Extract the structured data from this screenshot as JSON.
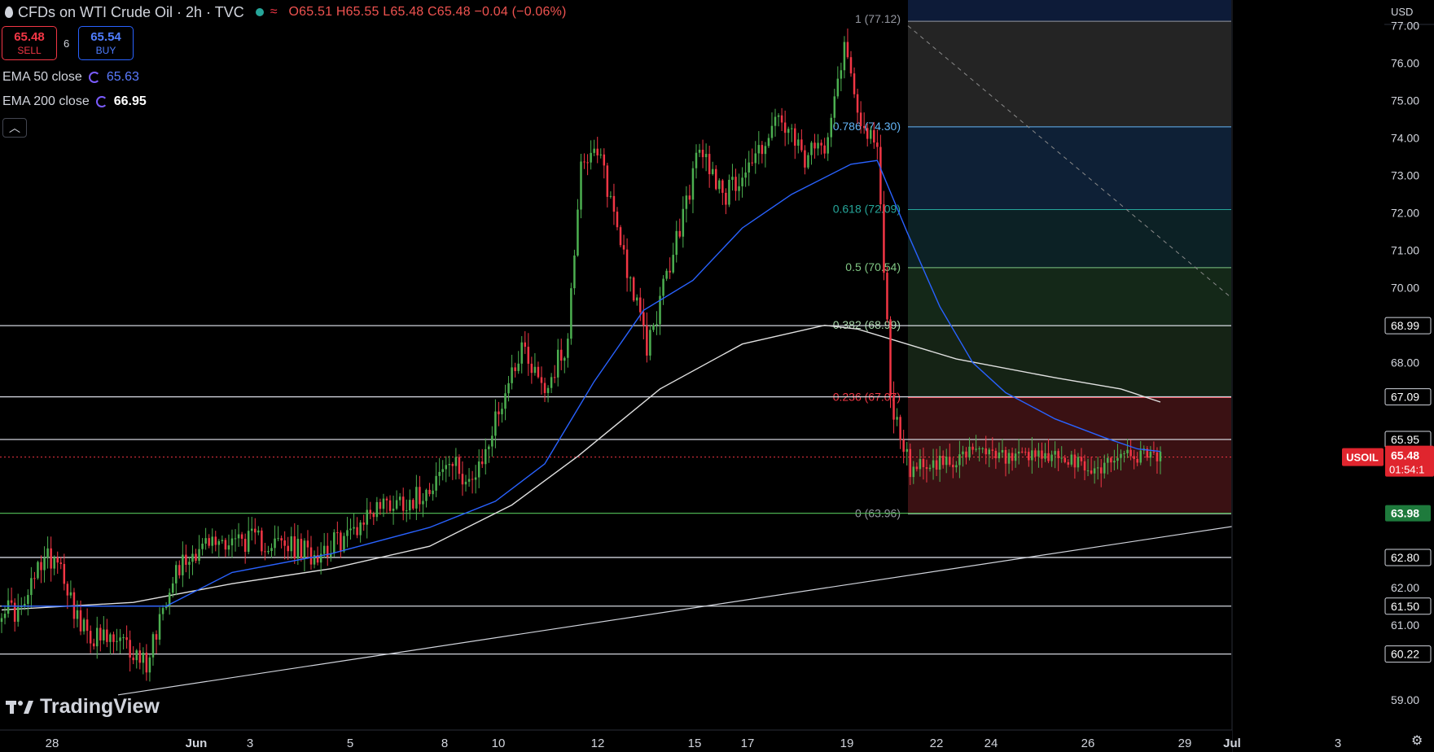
{
  "header": {
    "title": "CFDs on WTI Crude Oil · 2h · TVC",
    "ohlc": "O65.51 H65.55 L65.48 C65.48 −0.04 (−0.06%)"
  },
  "trade": {
    "sell_price": "65.48",
    "sell_label": "SELL",
    "spread": "6",
    "buy_price": "65.54",
    "buy_label": "BUY"
  },
  "indicators": [
    {
      "label": "EMA 50 close",
      "value": "65.63"
    },
    {
      "label": "EMA 200 close",
      "value": "66.95"
    }
  ],
  "currency": "USD",
  "logo_text": "TradingView",
  "chart_data": {
    "type": "candlestick",
    "symbol_tag": "USOIL",
    "last_price": "65.48",
    "countdown": "01:54:1",
    "colors": {
      "up": "#4caf50",
      "down": "#f23645",
      "ema50": "#2962ff",
      "ema200": "#e0e0e0",
      "grid_line": "#d1d4dc"
    },
    "y_axis": {
      "min": 58.3,
      "max": 77.6,
      "ticks": [
        "77.00",
        "76.00",
        "75.00",
        "74.00",
        "73.00",
        "72.00",
        "71.00",
        "70.00",
        "68.00",
        "62.00",
        "61.00",
        "59.00"
      ]
    },
    "x_labels": [
      "28",
      "Jun",
      "3",
      "5",
      "8",
      "10",
      "12",
      "15",
      "17",
      "19",
      "22",
      "24",
      "26",
      "29",
      "Jul",
      "3"
    ],
    "horizontal_levels": [
      {
        "value": 68.99,
        "label": "68.99",
        "style": "white"
      },
      {
        "value": 67.09,
        "label": "67.09",
        "style": "white"
      },
      {
        "value": 65.95,
        "label": "65.95",
        "style": "white"
      },
      {
        "value": 63.98,
        "label": "63.98",
        "style": "green"
      },
      {
        "value": 62.8,
        "label": "62.80",
        "style": "white"
      },
      {
        "value": 61.5,
        "label": "61.50",
        "style": "white"
      },
      {
        "value": 60.22,
        "label": "60.22",
        "style": "white"
      }
    ],
    "fibonacci": [
      {
        "value": 77.12,
        "label": "1 (77.12)",
        "color": "#9598a1",
        "fill": "#242424"
      },
      {
        "value": 74.3,
        "label": "0.786 (74.30)",
        "color": "#64b5f6",
        "fill": "#0e2036"
      },
      {
        "value": 72.09,
        "label": "0.618 (72.09)",
        "color": "#26a69a",
        "fill": "#0c2125"
      },
      {
        "value": 70.54,
        "label": "0.5 (70.54)",
        "color": "#81c784",
        "fill": "#142818"
      },
      {
        "value": 68.99,
        "label": "0.382 (68.99)",
        "color": "#a5d6a7",
        "fill": "#152315"
      },
      {
        "value": 67.07,
        "label": "0.236 (67.07)",
        "color": "#f23645",
        "fill": "#3a1113"
      },
      {
        "value": 63.96,
        "label": "0 (63.96)",
        "color": "#9598a1",
        "fill": "#3a1113"
      }
    ],
    "fib_extra": {
      "top_fill": "#0d1b38"
    },
    "trendline": {
      "from": [
        0,
        60.0
      ],
      "to": [
        1.0,
        64.85
      ]
    },
    "diagonal": {
      "from": [
        0.0,
        77.1
      ],
      "to": [
        1.0,
        66.3
      ]
    },
    "anchors": [
      {
        "i": 0,
        "v": 61.5
      },
      {
        "i": 6,
        "v": 61.3
      },
      {
        "i": 12,
        "v": 62.7
      },
      {
        "i": 17,
        "v": 62.9
      },
      {
        "i": 24,
        "v": 60.9
      },
      {
        "i": 30,
        "v": 60.6
      },
      {
        "i": 36,
        "v": 60.5
      },
      {
        "i": 44,
        "v": 60.0
      },
      {
        "i": 52,
        "v": 62.4
      },
      {
        "i": 60,
        "v": 63.1
      },
      {
        "i": 70,
        "v": 63.3
      },
      {
        "i": 82,
        "v": 63.2
      },
      {
        "i": 94,
        "v": 62.9
      },
      {
        "i": 104,
        "v": 63.3
      },
      {
        "i": 114,
        "v": 64.2
      },
      {
        "i": 126,
        "v": 64.4
      },
      {
        "i": 136,
        "v": 65.3
      },
      {
        "i": 144,
        "v": 64.8
      },
      {
        "i": 152,
        "v": 67.0
      },
      {
        "i": 158,
        "v": 68.5
      },
      {
        "i": 165,
        "v": 67.3
      },
      {
        "i": 172,
        "v": 68.6
      },
      {
        "i": 176,
        "v": 73.5
      },
      {
        "i": 182,
        "v": 73.4
      },
      {
        "i": 188,
        "v": 71.3
      },
      {
        "i": 196,
        "v": 68.4
      },
      {
        "i": 204,
        "v": 70.9
      },
      {
        "i": 212,
        "v": 73.7
      },
      {
        "i": 220,
        "v": 72.5
      },
      {
        "i": 228,
        "v": 73.4
      },
      {
        "i": 236,
        "v": 74.5
      },
      {
        "i": 244,
        "v": 73.4
      },
      {
        "i": 250,
        "v": 73.9
      },
      {
        "i": 256,
        "v": 76.5
      },
      {
        "i": 262,
        "v": 74.2
      },
      {
        "i": 266,
        "v": 73.6
      },
      {
        "i": 270,
        "v": 67.5
      },
      {
        "i": 274,
        "v": 65.3
      },
      {
        "i": 284,
        "v": 65.3
      },
      {
        "i": 296,
        "v": 65.6
      },
      {
        "i": 308,
        "v": 65.4
      },
      {
        "i": 320,
        "v": 65.5
      },
      {
        "i": 332,
        "v": 65.1
      },
      {
        "i": 340,
        "v": 65.6
      },
      {
        "i": 348,
        "v": 65.48
      }
    ],
    "ema50": [
      [
        0,
        61.5
      ],
      [
        20,
        61.5
      ],
      [
        50,
        61.5
      ],
      [
        70,
        62.4
      ],
      [
        100,
        62.9
      ],
      [
        130,
        63.6
      ],
      [
        150,
        64.3
      ],
      [
        165,
        65.3
      ],
      [
        180,
        67.5
      ],
      [
        195,
        69.4
      ],
      [
        210,
        70.2
      ],
      [
        225,
        71.6
      ],
      [
        240,
        72.5
      ],
      [
        258,
        73.3
      ],
      [
        266,
        73.4
      ],
      [
        275,
        71.5
      ],
      [
        285,
        69.5
      ],
      [
        295,
        68.0
      ],
      [
        305,
        67.2
      ],
      [
        320,
        66.5
      ],
      [
        335,
        66.0
      ],
      [
        345,
        65.7
      ],
      [
        352,
        65.63
      ]
    ],
    "ema200": [
      [
        0,
        61.4
      ],
      [
        40,
        61.6
      ],
      [
        70,
        62.1
      ],
      [
        100,
        62.5
      ],
      [
        130,
        63.1
      ],
      [
        155,
        64.2
      ],
      [
        175,
        65.5
      ],
      [
        200,
        67.3
      ],
      [
        225,
        68.5
      ],
      [
        250,
        69.0
      ],
      [
        260,
        68.9
      ],
      [
        290,
        68.1
      ],
      [
        320,
        67.6
      ],
      [
        340,
        67.3
      ],
      [
        352,
        66.95
      ]
    ],
    "candle_count": 353
  }
}
